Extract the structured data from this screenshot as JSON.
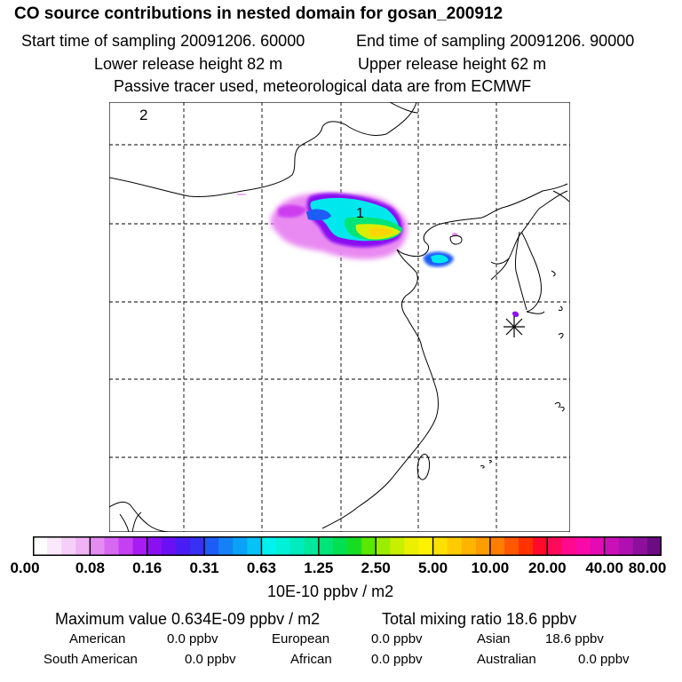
{
  "header": {
    "title": "CO  source contributions in nested domain for gosan_200912",
    "start_label": "Start time of sampling 20091206. 60000",
    "end_label": "End time of sampling 20091206. 90000",
    "lower_label": "Lower release height   82 m",
    "upper_label": "Upper release height   62 m",
    "tracer_note": "Passive tracer used, meteorological data are from ECMWF"
  },
  "map": {
    "panel_number": "2",
    "max_marker_label": "1",
    "receptor_marker": "*"
  },
  "colorbar": {
    "unit_label": "10E-10 ppbv / m2",
    "tick_labels": [
      "0.00",
      "0.08",
      "0.16",
      "0.31",
      "0.63",
      "1.25",
      "2.50",
      "5.00",
      "10.00",
      "20.00",
      "40.00",
      "80.00"
    ],
    "colors": [
      "#ffffff",
      "#fbe9fb",
      "#f5cff7",
      "#efb2f5",
      "#e48cf2",
      "#d768f2",
      "#c440f0",
      "#a71cf0",
      "#8a10f2",
      "#6a10f4",
      "#4a1cf4",
      "#3830f2",
      "#1e5cf6",
      "#1482f6",
      "#0aa2f6",
      "#06c2f6",
      "#00f2f0",
      "#00f0d8",
      "#00ecbc",
      "#00e89c",
      "#00e478",
      "#00e050",
      "#18dc24",
      "#5ae800",
      "#9cec00",
      "#c8ee00",
      "#ecf000",
      "#fff200",
      "#ffe000",
      "#ffcc00",
      "#ffb400",
      "#ff9c00",
      "#ff7e00",
      "#ff5800",
      "#ff3200",
      "#ff0a28",
      "#ff0a5a",
      "#ff0a8c",
      "#f80aa8",
      "#e40ab4",
      "#cc10b8",
      "#b010b0",
      "#8c109c",
      "#6c0c84"
    ]
  },
  "stats": {
    "max_value": "Maximum value  0.634E-09 ppbv / m2",
    "total_mixing": "Total mixing ratio       18.6 ppbv",
    "american_label": "American",
    "american_value": "0.0 ppbv",
    "european_label": "European",
    "european_value": "0.0 ppbv",
    "asian_label": "Asian",
    "asian_value": "18.6 ppbv",
    "south_american_label": "South American",
    "south_american_value": "0.0 ppbv",
    "african_label": "African",
    "african_value": "0.0 ppbv",
    "australian_label": "Australian",
    "australian_value": "0.0 ppbv"
  }
}
